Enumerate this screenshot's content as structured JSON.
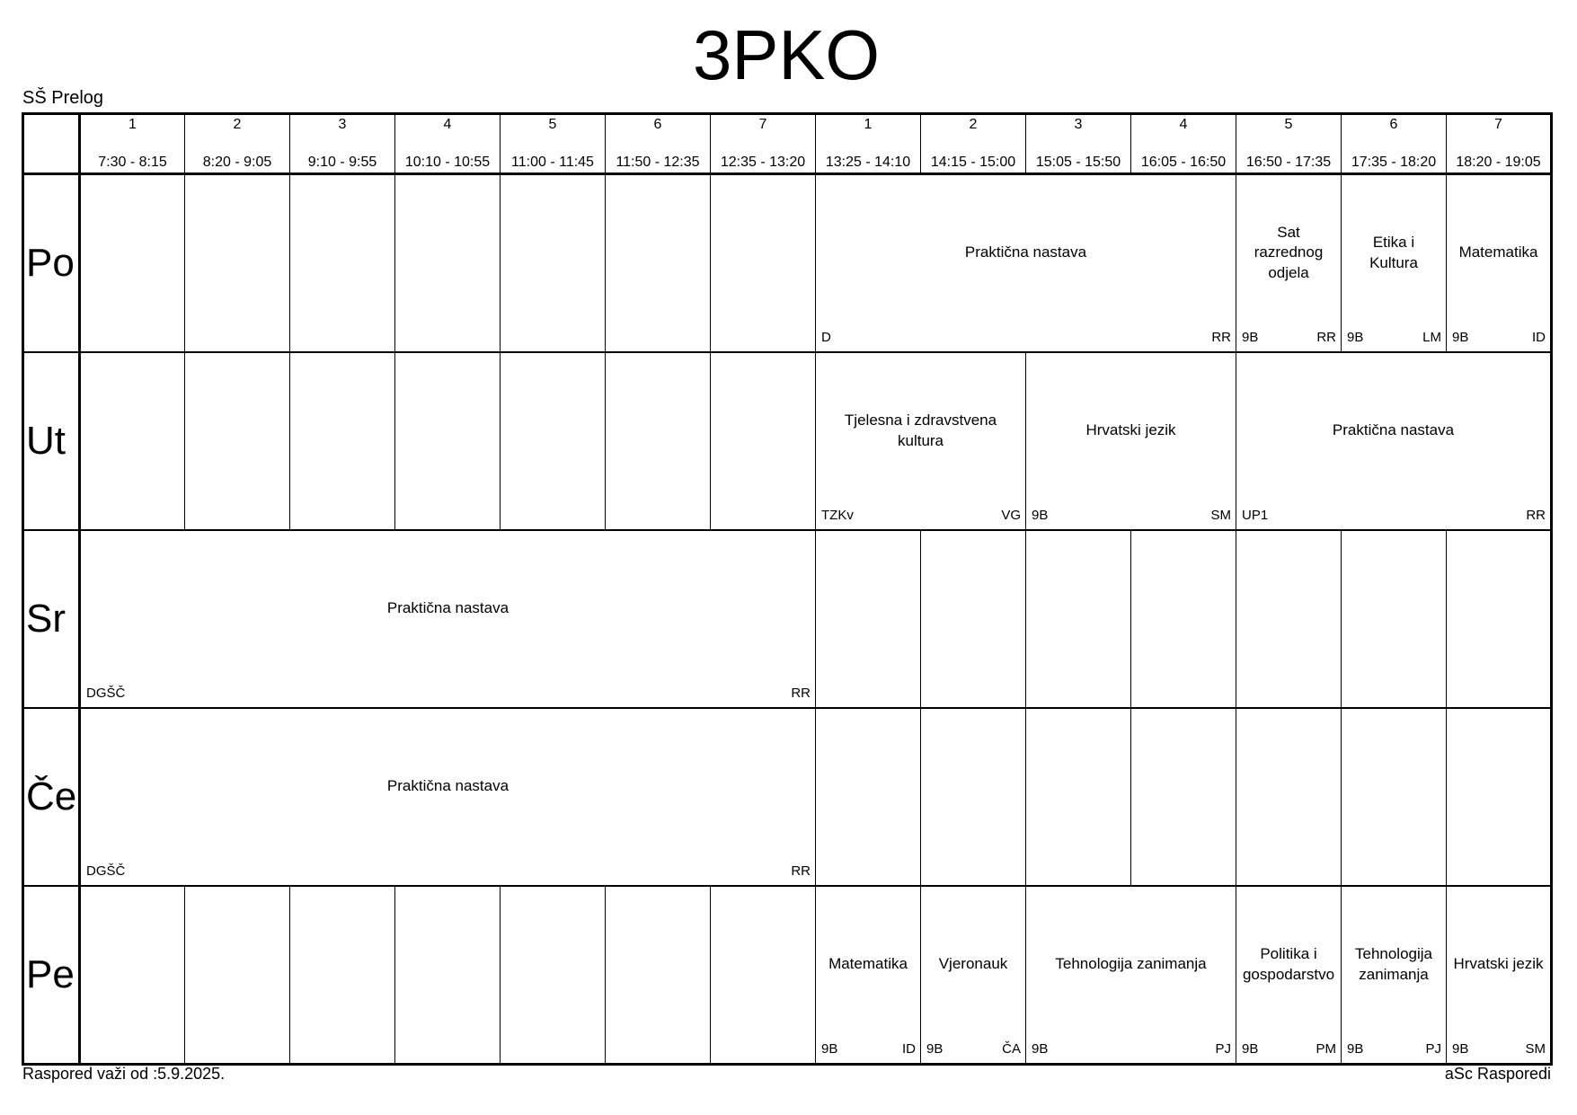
{
  "page": {
    "title": "3PKO",
    "school": "SŠ Prelog"
  },
  "footer": {
    "left": "Raspored važi od :5.9.2025.",
    "right": "aSc Rasporedi"
  },
  "periods": [
    {
      "num": "1",
      "time": "7:30 - 8:15"
    },
    {
      "num": "2",
      "time": "8:20 - 9:05"
    },
    {
      "num": "3",
      "time": "9:10 - 9:55"
    },
    {
      "num": "4",
      "time": "10:10 - 10:55"
    },
    {
      "num": "5",
      "time": "11:00 - 11:45"
    },
    {
      "num": "6",
      "time": "11:50 - 12:35"
    },
    {
      "num": "7",
      "time": "12:35 - 13:20"
    },
    {
      "num": "1",
      "time": "13:25 - 14:10"
    },
    {
      "num": "2",
      "time": "14:15 - 15:00"
    },
    {
      "num": "3",
      "time": "15:05 - 15:50"
    },
    {
      "num": "4",
      "time": "16:05 - 16:50"
    },
    {
      "num": "5",
      "time": "16:50 - 17:35"
    },
    {
      "num": "6",
      "time": "17:35 - 18:20"
    },
    {
      "num": "7",
      "time": "18:20 - 19:05"
    }
  ],
  "days": [
    {
      "label": "Po",
      "cells": [
        {
          "span": 1
        },
        {
          "span": 1
        },
        {
          "span": 1
        },
        {
          "span": 1
        },
        {
          "span": 1
        },
        {
          "span": 1
        },
        {
          "span": 1
        },
        {
          "span": 4,
          "subject": "Praktična nastava",
          "bottom_left": "D",
          "bottom_right": "RR"
        },
        {
          "span": 1,
          "subject": "Sat razrednog odjela",
          "bottom_left": "9B",
          "bottom_right": "RR"
        },
        {
          "span": 1,
          "subject": "Etika i Kultura",
          "bottom_left": "9B",
          "bottom_right": "LM"
        },
        {
          "span": 1,
          "subject": "Matematika",
          "bottom_left": "9B",
          "bottom_right": "ID"
        }
      ]
    },
    {
      "label": "Ut",
      "cells": [
        {
          "span": 1
        },
        {
          "span": 1
        },
        {
          "span": 1
        },
        {
          "span": 1
        },
        {
          "span": 1
        },
        {
          "span": 1
        },
        {
          "span": 1
        },
        {
          "span": 2,
          "subject": "Tjelesna i zdravstvena kultura",
          "bottom_left": "TZKv",
          "bottom_right": "VG"
        },
        {
          "span": 2,
          "subject": "Hrvatski jezik",
          "bottom_left": "9B",
          "bottom_right": "SM"
        },
        {
          "span": 3,
          "subject": "Praktična nastava",
          "bottom_left": "UP1",
          "bottom_right": "RR"
        }
      ]
    },
    {
      "label": "Sr",
      "cells": [
        {
          "span": 7,
          "subject": "Praktična nastava",
          "bottom_left": "DGŠČ",
          "bottom_right": "RR"
        },
        {
          "span": 1
        },
        {
          "span": 1
        },
        {
          "span": 1
        },
        {
          "span": 1
        },
        {
          "span": 1
        },
        {
          "span": 1
        },
        {
          "span": 1
        }
      ]
    },
    {
      "label": "Če",
      "cells": [
        {
          "span": 7,
          "subject": "Praktična nastava",
          "bottom_left": "DGŠČ",
          "bottom_right": "RR"
        },
        {
          "span": 1
        },
        {
          "span": 1
        },
        {
          "span": 1
        },
        {
          "span": 1
        },
        {
          "span": 1
        },
        {
          "span": 1
        },
        {
          "span": 1
        }
      ]
    },
    {
      "label": "Pe",
      "cells": [
        {
          "span": 1
        },
        {
          "span": 1
        },
        {
          "span": 1
        },
        {
          "span": 1
        },
        {
          "span": 1
        },
        {
          "span": 1
        },
        {
          "span": 1
        },
        {
          "span": 1,
          "subject": "Matematika",
          "bottom_left": "9B",
          "bottom_right": "ID"
        },
        {
          "span": 1,
          "subject": "Vjeronauk",
          "bottom_left": "9B",
          "bottom_right": "ČA"
        },
        {
          "span": 2,
          "subject": "Tehnologija zanimanja",
          "bottom_left": "9B",
          "bottom_right": "PJ"
        },
        {
          "span": 1,
          "subject": "Politika i gospodarstvo",
          "bottom_left": "9B",
          "bottom_right": "PM"
        },
        {
          "span": 1,
          "subject": "Tehnologija zanimanja",
          "bottom_left": "9B",
          "bottom_right": "PJ"
        },
        {
          "span": 1,
          "subject": "Hrvatski jezik",
          "bottom_left": "9B",
          "bottom_right": "SM"
        }
      ]
    }
  ]
}
